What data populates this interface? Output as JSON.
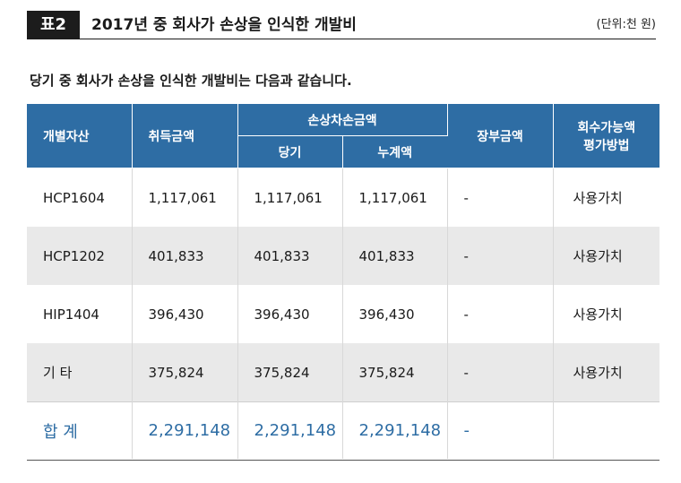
{
  "header": {
    "badge": "표2",
    "title": "2017년 중 회사가 손상을 인식한 개발비",
    "unit": "(단위:천 원)"
  },
  "intro": "당기 중 회사가 손상을 인식한 개발비는 다음과 같습니다.",
  "table": {
    "headers": {
      "asset": "개별자산",
      "acquisition": "취득금액",
      "impairment": "손상차손금액",
      "current": "당기",
      "cumulative": "누계액",
      "book_value": "장부금액",
      "recoverable_line1": "회수가능액",
      "recoverable_line2": "평가방법"
    },
    "rows": [
      {
        "asset": "HCP1604",
        "acquisition": "1,117,061",
        "current": "1,117,061",
        "cumulative": "1,117,061",
        "book": "-",
        "method": "사용가치"
      },
      {
        "asset": "HCP1202",
        "acquisition": "401,833",
        "current": "401,833",
        "cumulative": "401,833",
        "book": "-",
        "method": "사용가치"
      },
      {
        "asset": "HIP1404",
        "acquisition": "396,430",
        "current": "396,430",
        "cumulative": "396,430",
        "book": "-",
        "method": "사용가치"
      },
      {
        "asset": "기 타",
        "acquisition": "375,824",
        "current": "375,824",
        "cumulative": "375,824",
        "book": "-",
        "method": "사용가치"
      }
    ],
    "total": {
      "label": "합 계",
      "acquisition": "2,291,148",
      "current": "2,291,148",
      "cumulative": "2,291,148",
      "book": "-",
      "method": ""
    }
  },
  "colors": {
    "header_blue": "#2e6da4",
    "shade": "#e9e9e9",
    "badge": "#1c1c1c"
  }
}
